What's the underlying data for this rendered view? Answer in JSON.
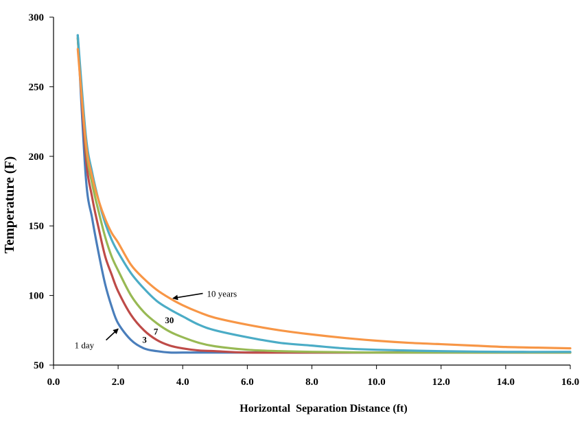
{
  "chart_data": {
    "type": "line",
    "title": "",
    "xlabel": "Horizontal  Separation Distance (ft)",
    "ylabel": "Temperature (F)",
    "xlim": [
      0,
      16
    ],
    "ylim": [
      50,
      300
    ],
    "x_ticks": [
      "0.0",
      "2.0",
      "4.0",
      "6.0",
      "8.0",
      "10.0",
      "12.0",
      "14.0",
      "16.0"
    ],
    "y_ticks": [
      "50",
      "100",
      "150",
      "200",
      "250",
      "300"
    ],
    "grid": false,
    "legend": "none",
    "series": [
      {
        "name": "1 day",
        "color": "#4a7ebb",
        "x": [
          0.75,
          1.0,
          1.2,
          1.4,
          1.6,
          1.8,
          2.0,
          2.4,
          2.8,
          3.2,
          3.6,
          4.0,
          5.0,
          6.0,
          8.0,
          10.0,
          12.0,
          14.0,
          16.0
        ],
        "y": [
          287,
          185,
          155,
          130,
          108,
          92,
          80,
          68,
          62,
          60,
          59,
          59,
          59,
          59,
          59,
          59,
          59,
          59,
          59
        ]
      },
      {
        "name": "3",
        "color": "#be4b48",
        "x": [
          0.75,
          1.0,
          1.2,
          1.4,
          1.6,
          1.8,
          2.0,
          2.4,
          2.8,
          3.2,
          3.6,
          4.0,
          4.5,
          5.0,
          6.0,
          8.0,
          10.0,
          12.0,
          14.0,
          16.0
        ],
        "y": [
          285,
          200,
          170,
          148,
          128,
          115,
          103,
          86,
          75,
          68,
          64,
          62,
          60.5,
          60,
          59,
          59,
          59,
          59,
          59,
          59
        ]
      },
      {
        "name": "7",
        "color": "#98b954",
        "x": [
          0.75,
          1.0,
          1.2,
          1.4,
          1.6,
          1.8,
          2.0,
          2.4,
          2.8,
          3.2,
          3.6,
          4.0,
          4.5,
          5.0,
          6.0,
          7.0,
          8.0,
          10.0,
          12.0,
          14.0,
          16.0
        ],
        "y": [
          285,
          208,
          180,
          160,
          142,
          128,
          118,
          100,
          88,
          80,
          74,
          70,
          66,
          63.5,
          61,
          60,
          59.5,
          59,
          59,
          59,
          59
        ]
      },
      {
        "name": "30",
        "color": "#4bacc6",
        "x": [
          0.75,
          1.0,
          1.2,
          1.4,
          1.6,
          1.8,
          2.0,
          2.4,
          2.8,
          3.2,
          3.6,
          4.0,
          4.5,
          5.0,
          6.0,
          7.0,
          8.0,
          9.0,
          10.0,
          12.0,
          14.0,
          16.0
        ],
        "y": [
          287,
          215,
          188,
          168,
          152,
          140,
          131,
          116,
          105,
          96,
          90,
          85,
          79,
          75,
          70,
          66,
          64,
          62,
          61,
          60,
          59.5,
          59.5
        ]
      },
      {
        "name": "10 years",
        "color": "#f79646",
        "x": [
          0.75,
          1.0,
          1.2,
          1.4,
          1.6,
          1.8,
          2.0,
          2.4,
          2.8,
          3.2,
          3.6,
          4.0,
          4.5,
          5.0,
          6.0,
          7.0,
          8.0,
          9.0,
          10.0,
          11.0,
          12.0,
          13.0,
          14.0,
          15.0,
          16.0
        ],
        "y": [
          277,
          210,
          185,
          168,
          155,
          145,
          138,
          122,
          112,
          104,
          98,
          93,
          88,
          84,
          79,
          75,
          72,
          69.5,
          67.5,
          66,
          65,
          64,
          63,
          62.5,
          62
        ]
      }
    ],
    "annotations": [
      {
        "text": "10 years",
        "x": 4.75,
        "y": 101,
        "arrow_to": [
          3.7,
          98
        ]
      },
      {
        "text": "30",
        "x": 3.45,
        "y": 82
      },
      {
        "text": "7",
        "x": 3.1,
        "y": 74
      },
      {
        "text": "3",
        "x": 2.75,
        "y": 68
      },
      {
        "text": "1 day",
        "x": 0.65,
        "y": 64,
        "arrow_to": [
          2.0,
          76
        ]
      }
    ]
  }
}
